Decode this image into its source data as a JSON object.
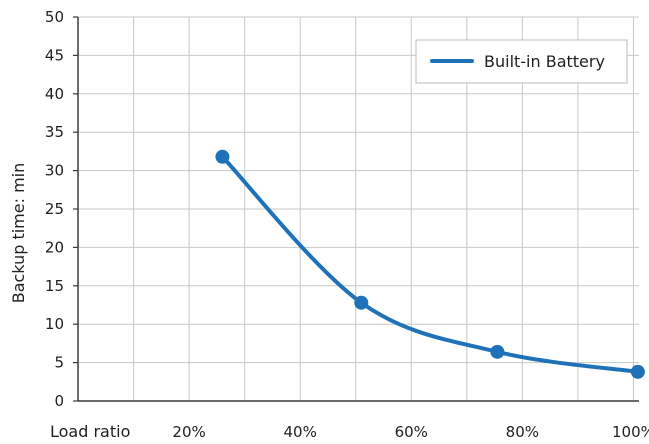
{
  "chart_data": {
    "type": "line",
    "title": "",
    "xlabel": "Load ratio",
    "ylabel": "Backup time: min",
    "x_ticks": [
      {
        "value": 20,
        "label": "20%"
      },
      {
        "value": 40,
        "label": "40%"
      },
      {
        "value": 60,
        "label": "60%"
      },
      {
        "value": 80,
        "label": "80%"
      },
      {
        "value": 100,
        "label": "100%"
      }
    ],
    "y_ticks": [
      0,
      5,
      10,
      15,
      20,
      25,
      30,
      35,
      40,
      45,
      50
    ],
    "xlim": [
      0,
      101
    ],
    "ylim": [
      0,
      50
    ],
    "grid": true,
    "legend_position": "top-right",
    "series": [
      {
        "name": "Built-in Battery",
        "color": "#1f72b8",
        "x": [
          26,
          51,
          75.5,
          100.8
        ],
        "y": [
          31.8,
          12.8,
          6.4,
          3.8
        ]
      }
    ]
  }
}
